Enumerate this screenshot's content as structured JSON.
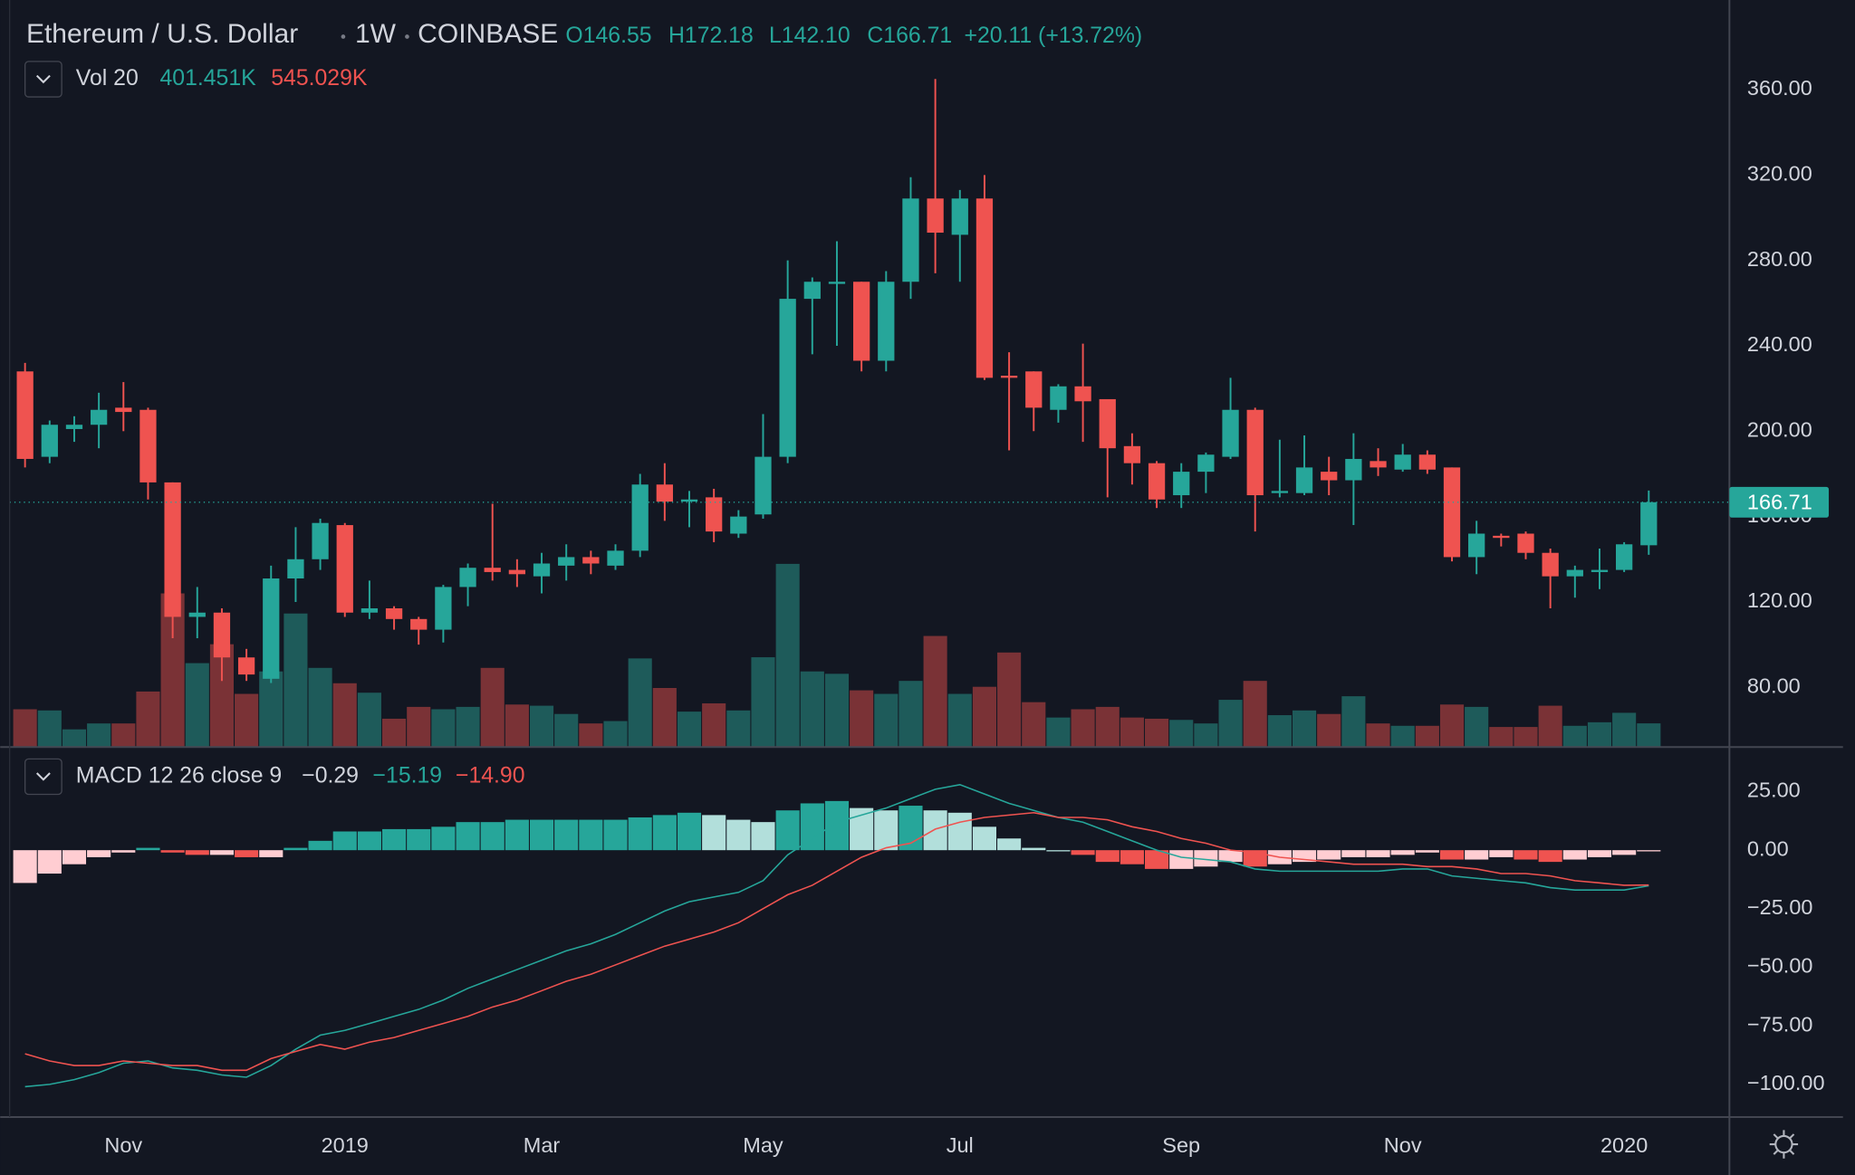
{
  "chart_data": [
    {
      "type": "candlestick",
      "title": "Ethereum / U.S. Dollar",
      "interval": "1W",
      "exchange": "COINBASE",
      "ohlc_legend": [
        "O146.55",
        "H172.18",
        "L142.10",
        "C166.71",
        "+20.11 (+13.72%)"
      ],
      "volume_legend": [
        "Vol 20",
        "401.451K",
        "545.029K"
      ],
      "categories": [
        null,
        null,
        null,
        null,
        "Nov",
        null,
        null,
        null,
        null,
        null,
        null,
        null,
        null,
        "2019",
        null,
        null,
        null,
        null,
        null,
        null,
        null,
        "Mar",
        null,
        null,
        null,
        null,
        null,
        null,
        null,
        null,
        "May",
        null,
        null,
        null,
        null,
        null,
        null,
        null,
        "Jul",
        null,
        null,
        null,
        null,
        null,
        null,
        null,
        null,
        "Sep",
        null,
        null,
        null,
        null,
        null,
        null,
        null,
        null,
        "Nov",
        null,
        null,
        null,
        null,
        null,
        null,
        null,
        null,
        "2020",
        null
      ],
      "open": [
        228,
        188,
        201,
        203,
        211,
        210,
        176,
        113,
        115,
        94,
        84,
        131,
        140,
        156,
        115,
        117,
        112,
        107,
        127,
        136,
        135,
        132,
        137,
        141,
        137,
        144,
        175,
        167,
        169,
        152,
        161,
        188,
        262,
        269,
        270,
        233,
        270,
        309,
        292,
        309,
        226,
        228,
        210,
        221,
        215,
        193,
        185,
        170,
        181,
        188,
        210,
        171,
        171,
        181,
        177,
        186,
        182,
        189,
        183,
        141,
        151,
        152,
        143,
        132,
        134,
        135,
        146.55
      ],
      "high": [
        232,
        205,
        207,
        218,
        223,
        211,
        176,
        127,
        117,
        98,
        137,
        155,
        159,
        157,
        130,
        118,
        113,
        128,
        138,
        166,
        140,
        143,
        147,
        144,
        147,
        180,
        185,
        172,
        173,
        163,
        208,
        280,
        272,
        289,
        270,
        275,
        319,
        365,
        313,
        320,
        237,
        228,
        222,
        241,
        215,
        199,
        186,
        185,
        190,
        225,
        211,
        196,
        198,
        188,
        199,
        192,
        194,
        191,
        183,
        158,
        152,
        153,
        145,
        137,
        145,
        148,
        172.18
      ],
      "low": [
        183,
        185,
        195,
        192,
        200,
        168,
        103,
        103,
        83,
        83,
        82,
        120,
        135,
        113,
        112,
        107,
        100,
        101,
        118,
        130,
        127,
        124,
        130,
        133,
        135,
        141,
        158,
        155,
        148,
        150,
        159,
        185,
        236,
        240,
        228,
        228,
        262,
        274,
        270,
        224,
        191,
        200,
        204,
        195,
        169,
        175,
        164,
        164,
        171,
        187,
        153,
        169,
        170,
        170,
        156,
        179,
        181,
        180,
        139,
        133,
        146,
        140,
        117,
        122,
        126,
        134,
        142.1
      ],
      "close": [
        187,
        203,
        203,
        210,
        209,
        176,
        113,
        115,
        94,
        86,
        131,
        140,
        157,
        115,
        117,
        112,
        107,
        127,
        136,
        134,
        133,
        138,
        141,
        138,
        144,
        175,
        167,
        168,
        153,
        160,
        188,
        262,
        270,
        270,
        233,
        270,
        309,
        293,
        309,
        225,
        225,
        211,
        221,
        214,
        192,
        185,
        168,
        181,
        189,
        210,
        170,
        172,
        183,
        177,
        187,
        183,
        189,
        182,
        141,
        152,
        150,
        143,
        132,
        135,
        135,
        147,
        166.71
      ],
      "volume": [
        640,
        620,
        300,
        400,
        400,
        940,
        2600,
        1420,
        1740,
        900,
        1280,
        2260,
        1340,
        1080,
        920,
        480,
        680,
        640,
        680,
        1340,
        720,
        700,
        560,
        400,
        440,
        1500,
        1000,
        600,
        740,
        620,
        1520,
        3100,
        1280,
        1240,
        960,
        900,
        1120,
        1880,
        900,
        1020,
        1600,
        760,
        500,
        640,
        680,
        500,
        480,
        460,
        400,
        800,
        1120,
        540,
        620,
        560,
        860,
        400,
        360,
        360,
        720,
        680,
        340,
        340,
        700,
        360,
        420,
        580,
        401.451
      ],
      "volume_lim": [
        0,
        12640
      ],
      "up_color": "#26a69a",
      "down_color": "#ef5350",
      "volume_up_color": "#1e5b5a",
      "volume_down_color": "#7a3236",
      "ylim": [
        52,
        402
      ],
      "yticks": [
        {
          "value": 80,
          "label": "80.00"
        },
        {
          "value": 120,
          "label": "120.00"
        },
        {
          "value": 160,
          "label": "160.00"
        },
        {
          "value": 200,
          "label": "200.00"
        },
        {
          "value": 240,
          "label": "240.00"
        },
        {
          "value": 280,
          "label": "280.00"
        },
        {
          "value": 320,
          "label": "320.00"
        },
        {
          "value": 360,
          "label": "360.00"
        }
      ],
      "grid": true,
      "last_price_line": true
    },
    {
      "type": "macd",
      "title": "MACD 12 26 close 9",
      "legend_values": [
        "−0.29",
        "−15.19",
        "−14.90"
      ],
      "histogram": [
        -14,
        -10,
        -6,
        -3,
        -1,
        1,
        -1,
        -2,
        -2,
        -3,
        -3,
        1,
        4,
        8,
        8,
        9,
        9,
        10,
        12,
        12,
        13,
        13,
        13,
        13,
        13,
        14,
        15,
        16,
        15,
        13,
        12,
        17,
        20,
        21,
        18,
        17,
        19,
        17,
        16,
        10,
        5,
        1,
        0,
        -2,
        -5,
        -6,
        -8,
        -8,
        -7,
        -5,
        -7,
        -6,
        -5,
        -4,
        -3,
        -3,
        -2,
        -1,
        -4,
        -4,
        -3,
        -4,
        -5,
        -4,
        -3,
        -2,
        -0.29
      ],
      "macd": [
        -101,
        -100,
        -98,
        -95,
        -91,
        -90,
        -93,
        -94,
        -96,
        -97,
        -92,
        -85,
        -79,
        -77,
        -74,
        -71,
        -68,
        -64,
        -59,
        -55,
        -51,
        -47,
        -43,
        -40,
        -36,
        -31,
        -26,
        -22,
        -20,
        -18,
        -13,
        -2,
        5,
        12,
        15,
        18,
        22,
        26,
        28,
        24,
        20,
        17,
        14,
        12,
        8,
        4,
        0,
        -3,
        -4,
        -5,
        -8,
        -9,
        -9,
        -9,
        -9,
        -9,
        -8,
        -8,
        -11,
        -12,
        -13,
        -14,
        -16,
        -17,
        -17,
        -17,
        -15.19
      ],
      "signal": [
        -87,
        -90,
        -92,
        -92,
        -90,
        -91,
        -92,
        -92,
        -94,
        -94,
        -89,
        -86,
        -83,
        -85,
        -82,
        -80,
        -77,
        -74,
        -71,
        -67,
        -64,
        -60,
        -56,
        -53,
        -49,
        -45,
        -41,
        -38,
        -35,
        -31,
        -25,
        -19,
        -15,
        -9,
        -3,
        1,
        3,
        9,
        12,
        14,
        15,
        16,
        14,
        14,
        13,
        10,
        8,
        5,
        3,
        0,
        -1,
        -3,
        -4,
        -5,
        -6,
        -6,
        -6,
        -7,
        -7,
        -8,
        -10,
        -10,
        -11,
        -13,
        -14,
        -15,
        -14.9
      ],
      "macd_color": "#26a69a",
      "signal_color": "#ef5350",
      "histogram_colors": {
        "pos_up": "#26a69a",
        "pos_down": "#b2dfdb",
        "neg_down": "#ef5350",
        "neg_up": "#ffcdd2"
      },
      "ylim": [
        -114,
        40
      ],
      "yticks": [
        {
          "value": 25,
          "label": "25.00"
        },
        {
          "value": 0,
          "label": "0.00"
        },
        {
          "value": -25,
          "label": "−25.00"
        },
        {
          "value": -50,
          "label": "−50.00"
        },
        {
          "value": -75,
          "label": "−75.00"
        },
        {
          "value": -100,
          "label": "−100.00"
        }
      ],
      "grid": true
    }
  ]
}
